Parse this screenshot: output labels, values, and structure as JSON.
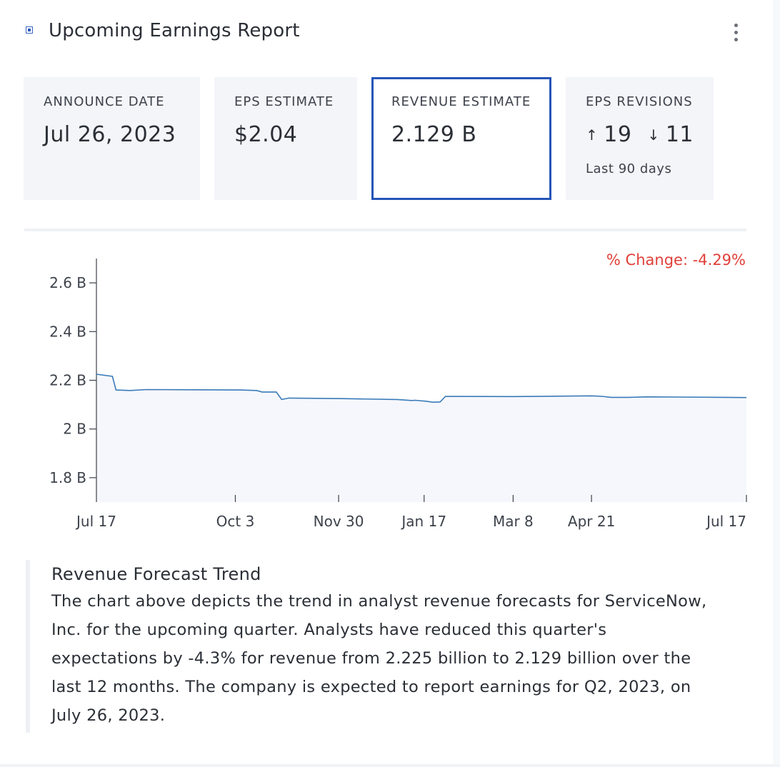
{
  "header": {
    "title": "Upcoming Earnings Report",
    "menu_icon": "more-vertical-icon"
  },
  "tiles": [
    {
      "label": "ANNOUNCE DATE",
      "value": "Jul 26, 2023"
    },
    {
      "label": "EPS ESTIMATE",
      "value": "$2.04"
    },
    {
      "label": "REVENUE ESTIMATE",
      "value": "2.129 B",
      "selected": true
    },
    {
      "label": "EPS REVISIONS",
      "up_icon": "↑",
      "up_count": "19",
      "down_icon": "↓",
      "down_count": "11",
      "sub": "Last 90 days"
    }
  ],
  "chart_data": {
    "type": "area",
    "title": "",
    "annotation": "% Change: -4.29%",
    "annotation_color": "#e0403a",
    "line_color": "#3a7bb8",
    "fill_color": "#f6f7fc",
    "y_unit": "B",
    "ylim": [
      1.7,
      2.7
    ],
    "yticks": [
      {
        "value": 1.8,
        "label": "1.8 B"
      },
      {
        "value": 2.0,
        "label": "2 B"
      },
      {
        "value": 2.2,
        "label": "2.2 B"
      },
      {
        "value": 2.4,
        "label": "2.4 B"
      },
      {
        "value": 2.6,
        "label": "2.6 B"
      }
    ],
    "xlim": [
      "2022-07-17",
      "2023-07-17"
    ],
    "xticks": [
      {
        "date": "2022-07-17",
        "label": "Jul 17"
      },
      {
        "date": "2022-10-03",
        "label": "Oct 3"
      },
      {
        "date": "2022-11-30",
        "label": "Nov 30"
      },
      {
        "date": "2023-01-17",
        "label": "Jan 17"
      },
      {
        "date": "2023-03-08",
        "label": "Mar 8"
      },
      {
        "date": "2023-04-21",
        "label": "Apr 21"
      },
      {
        "date": "2023-07-17",
        "label": "Jul 17"
      }
    ],
    "series": [
      {
        "points": [
          [
            "2022-07-17",
            2.225
          ],
          [
            "2022-07-26",
            2.216
          ],
          [
            "2022-07-28",
            2.16
          ],
          [
            "2022-08-05",
            2.158
          ],
          [
            "2022-08-14",
            2.162
          ],
          [
            "2022-09-15",
            2.161
          ],
          [
            "2022-10-06",
            2.16
          ],
          [
            "2022-10-15",
            2.158
          ],
          [
            "2022-10-18",
            2.152
          ],
          [
            "2022-10-26",
            2.152
          ],
          [
            "2022-10-29",
            2.121
          ],
          [
            "2022-11-02",
            2.127
          ],
          [
            "2022-11-30",
            2.125
          ],
          [
            "2023-01-02",
            2.121
          ],
          [
            "2023-01-10",
            2.117
          ],
          [
            "2023-01-12",
            2.118
          ],
          [
            "2023-01-18",
            2.114
          ],
          [
            "2023-01-22",
            2.11
          ],
          [
            "2023-01-26",
            2.111
          ],
          [
            "2023-01-29",
            2.134
          ],
          [
            "2023-03-08",
            2.133
          ],
          [
            "2023-04-21",
            2.136
          ],
          [
            "2023-04-27",
            2.134
          ],
          [
            "2023-05-02",
            2.13
          ],
          [
            "2023-05-12",
            2.13
          ],
          [
            "2023-05-22",
            2.132
          ],
          [
            "2023-06-10",
            2.131
          ],
          [
            "2023-07-17",
            2.129
          ]
        ]
      }
    ]
  },
  "note": {
    "title": "Revenue Forecast Trend",
    "body": "The chart above depicts the trend in analyst revenue forecasts for ServiceNow, Inc. for the upcoming quarter. Analysts have reduced this quarter's expectations by -4.3% for revenue from 2.225 billion to 2.129 billion over the last 12 months. The company is expected to report earnings for Q2, 2023, on July 26, 2023."
  }
}
